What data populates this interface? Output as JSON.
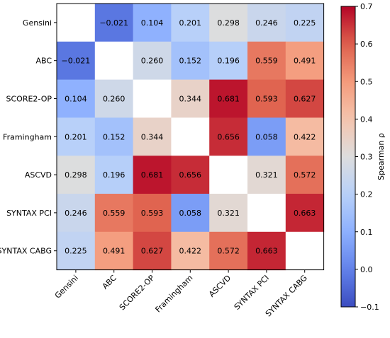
{
  "chart_data": {
    "type": "heatmap",
    "row_labels": [
      "Gensini",
      "ABC",
      "SCORE2-OP",
      "Framingham",
      "ASCVD",
      "SYNTAX PCI",
      "SYNTAX CABG"
    ],
    "col_labels": [
      "Gensini",
      "ABC",
      "SCORE2-OP",
      "Framingham",
      "ASCVD",
      "SYNTAX PCI",
      "SYNTAX CABG"
    ],
    "values": [
      [
        null,
        -0.021,
        0.104,
        0.201,
        0.298,
        0.246,
        0.225
      ],
      [
        -0.021,
        null,
        0.26,
        0.152,
        0.196,
        0.559,
        0.491
      ],
      [
        0.104,
        0.26,
        null,
        0.344,
        0.681,
        0.593,
        0.627
      ],
      [
        0.201,
        0.152,
        0.344,
        null,
        0.656,
        0.058,
        0.422
      ],
      [
        0.298,
        0.196,
        0.681,
        0.656,
        null,
        0.321,
        0.572
      ],
      [
        0.246,
        0.559,
        0.593,
        0.058,
        0.321,
        null,
        0.663
      ],
      [
        0.225,
        0.491,
        0.627,
        0.422,
        0.572,
        0.663,
        null
      ]
    ],
    "value_labels": [
      [
        "",
        "−0.021",
        "0.104",
        "0.201",
        "0.298",
        "0.246",
        "0.225"
      ],
      [
        "−0.021",
        "",
        "0.260",
        "0.152",
        "0.196",
        "0.559",
        "0.491"
      ],
      [
        "0.104",
        "0.260",
        "",
        "0.344",
        "0.681",
        "0.593",
        "0.627"
      ],
      [
        "0.201",
        "0.152",
        "0.344",
        "",
        "0.656",
        "0.058",
        "0.422"
      ],
      [
        "0.298",
        "0.196",
        "0.681",
        "0.656",
        "",
        "0.321",
        "0.572"
      ],
      [
        "0.246",
        "0.559",
        "0.593",
        "0.058",
        "0.321",
        "",
        "0.663"
      ],
      [
        "0.225",
        "0.491",
        "0.627",
        "0.422",
        "0.572",
        "0.663",
        ""
      ]
    ],
    "colorbar": {
      "label": "Spearman ρ",
      "vmin": -0.1,
      "vmax": 0.7,
      "ticks": [
        -0.1,
        0.0,
        0.1,
        0.2,
        0.3,
        0.4,
        0.5,
        0.6,
        0.7
      ],
      "tick_labels": [
        "−0.1",
        "0.0",
        "0.1",
        "0.2",
        "0.3",
        "0.4",
        "0.5",
        "0.6",
        "0.7"
      ],
      "colormap": "coolwarm"
    },
    "grid": false,
    "diagonal_color": "#ffffff"
  }
}
